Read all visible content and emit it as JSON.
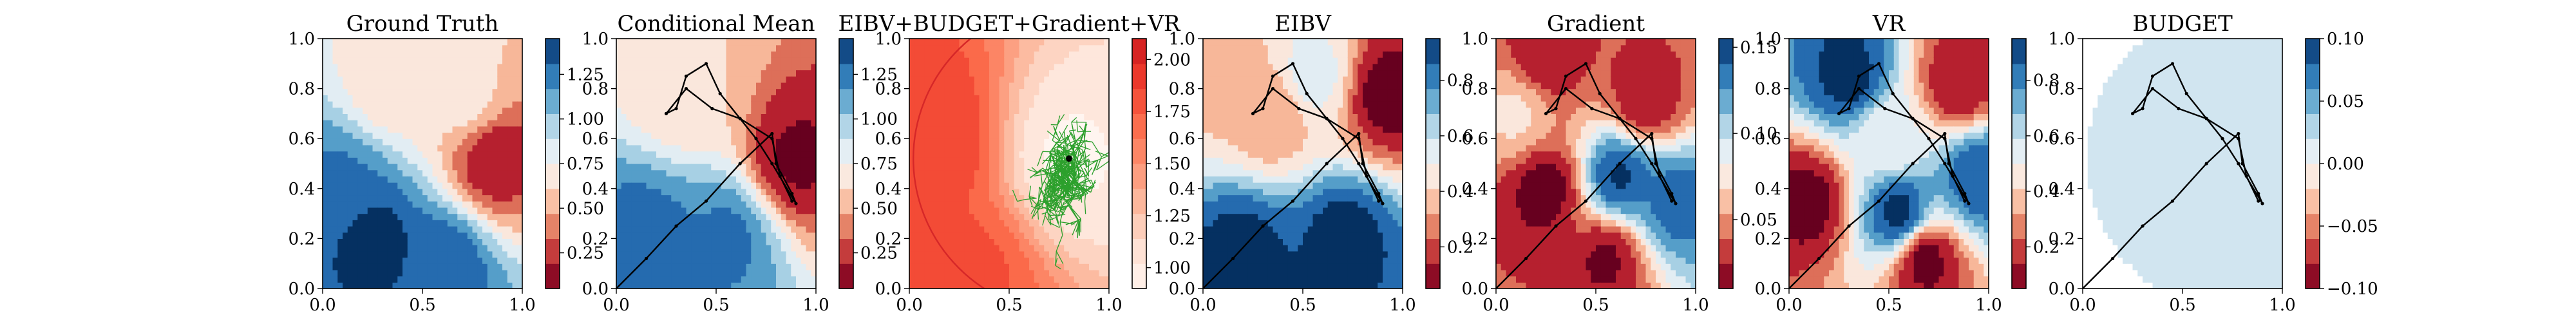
{
  "chart_data": [
    {
      "type": "heatmap",
      "title": "Ground Truth",
      "xlabel": "",
      "ylabel": "",
      "xlim": [
        0.0,
        1.0
      ],
      "ylim": [
        0.0,
        1.0
      ],
      "x_ticks": [
        "0.0",
        "0.5",
        "1.0"
      ],
      "y_ticks": [
        "0.0",
        "0.2",
        "0.4",
        "0.6",
        "0.8",
        "1.0"
      ],
      "colormap": "RdBu",
      "colorbar_range": [
        0.05,
        1.45
      ],
      "colorbar_ticks": [
        "0.25",
        "0.50",
        "0.75",
        "1.00",
        "1.25"
      ],
      "field_features": [
        {
          "x": 0.85,
          "y": 0.52,
          "value": 0.15
        },
        {
          "x": 0.35,
          "y": 0.82,
          "value": 0.62
        },
        {
          "x": 0.72,
          "y": 0.75,
          "value": 0.65
        },
        {
          "x": 0.25,
          "y": 0.2,
          "value": 1.45
        },
        {
          "x": 0.6,
          "y": 0.1,
          "value": 1.35
        },
        {
          "x": 0.1,
          "y": 0.4,
          "value": 1.25
        }
      ],
      "path": []
    },
    {
      "type": "heatmap",
      "title": "Conditional Mean",
      "xlabel": "",
      "ylabel": "",
      "xlim": [
        0.0,
        1.0
      ],
      "ylim": [
        0.0,
        1.0
      ],
      "x_ticks": [
        "0.0",
        "0.5",
        "1.0"
      ],
      "y_ticks": [
        "0.0",
        "0.2",
        "0.4",
        "0.6",
        "0.8",
        "1.0"
      ],
      "colormap": "RdBu",
      "colorbar_range": [
        0.05,
        1.45
      ],
      "colorbar_ticks": [
        "0.25",
        "0.50",
        "0.75",
        "1.00",
        "1.25"
      ],
      "field_features": [
        {
          "x": 0.9,
          "y": 0.52,
          "value": 0.1
        },
        {
          "x": 0.35,
          "y": 0.8,
          "value": 0.6
        },
        {
          "x": 0.15,
          "y": 0.2,
          "value": 1.3
        },
        {
          "x": 0.55,
          "y": 0.2,
          "value": 1.25
        }
      ],
      "path": [
        [
          0.0,
          0.0
        ],
        [
          0.15,
          0.12
        ],
        [
          0.3,
          0.25
        ],
        [
          0.45,
          0.35
        ],
        [
          0.62,
          0.5
        ],
        [
          0.78,
          0.62
        ],
        [
          0.8,
          0.5
        ],
        [
          0.88,
          0.38
        ],
        [
          0.9,
          0.34
        ],
        [
          0.78,
          0.5
        ],
        [
          0.7,
          0.6
        ],
        [
          0.52,
          0.78
        ],
        [
          0.45,
          0.9
        ],
        [
          0.35,
          0.85
        ],
        [
          0.3,
          0.72
        ],
        [
          0.25,
          0.7
        ],
        [
          0.35,
          0.8
        ],
        [
          0.48,
          0.72
        ],
        [
          0.62,
          0.68
        ],
        [
          0.78,
          0.6
        ],
        [
          0.82,
          0.45
        ],
        [
          0.88,
          0.35
        ]
      ]
    },
    {
      "type": "heatmap",
      "title": "EIBV+BUDGET+Gradient+VR",
      "xlabel": "",
      "ylabel": "",
      "xlim": [
        0.0,
        1.0
      ],
      "ylim": [
        0.0,
        1.0
      ],
      "x_ticks": [
        "0.0",
        "0.5",
        "1.0"
      ],
      "y_ticks": [
        "0.0",
        "0.2",
        "0.4",
        "0.6",
        "0.8",
        "1.0"
      ],
      "colormap": "Reds",
      "colorbar_range": [
        0.9,
        2.1
      ],
      "colorbar_ticks": [
        "1.00",
        "1.25",
        "1.50",
        "1.75",
        "2.00"
      ],
      "field_features": [
        {
          "x": 0.8,
          "y": 0.52,
          "value": 0.95
        },
        {
          "x": 0.1,
          "y": 0.6,
          "value": 1.9
        },
        {
          "x": 0.3,
          "y": 0.05,
          "value": 1.8
        }
      ],
      "tree_root": [
        0.8,
        0.52
      ],
      "budget_ellipse": {
        "cx": 0.8,
        "cy": 0.52,
        "rx": 0.78,
        "ry": 0.62
      },
      "path": []
    },
    {
      "type": "heatmap",
      "title": "EIBV",
      "xlabel": "",
      "ylabel": "",
      "xlim": [
        0.0,
        1.0
      ],
      "ylim": [
        0.0,
        1.0
      ],
      "x_ticks": [
        "0.0",
        "0.5",
        "1.0"
      ],
      "y_ticks": [
        "0.0",
        "0.2",
        "0.4",
        "0.6",
        "0.8",
        "1.0"
      ],
      "colormap": "RdBu",
      "colorbar_range": [
        0.05,
        0.95
      ],
      "colorbar_ticks": [
        "0.2",
        "0.4",
        "0.6",
        "0.8"
      ],
      "field_features": [
        {
          "x": 0.92,
          "y": 0.78,
          "value": 0.05
        },
        {
          "x": 0.35,
          "y": 0.7,
          "value": 0.3
        },
        {
          "x": 0.08,
          "y": 0.88,
          "value": 0.35
        },
        {
          "x": 0.55,
          "y": 0.85,
          "value": 0.55
        },
        {
          "x": 0.2,
          "y": 0.15,
          "value": 0.95
        },
        {
          "x": 0.7,
          "y": 0.2,
          "value": 0.95
        }
      ],
      "path": [
        [
          0.0,
          0.0
        ],
        [
          0.15,
          0.12
        ],
        [
          0.3,
          0.25
        ],
        [
          0.45,
          0.35
        ],
        [
          0.62,
          0.5
        ],
        [
          0.78,
          0.62
        ],
        [
          0.8,
          0.5
        ],
        [
          0.88,
          0.38
        ],
        [
          0.9,
          0.34
        ],
        [
          0.78,
          0.5
        ],
        [
          0.7,
          0.6
        ],
        [
          0.52,
          0.78
        ],
        [
          0.45,
          0.9
        ],
        [
          0.35,
          0.85
        ],
        [
          0.3,
          0.72
        ],
        [
          0.25,
          0.7
        ],
        [
          0.35,
          0.8
        ],
        [
          0.48,
          0.72
        ],
        [
          0.62,
          0.68
        ],
        [
          0.78,
          0.6
        ],
        [
          0.82,
          0.45
        ],
        [
          0.88,
          0.35
        ]
      ]
    },
    {
      "type": "heatmap",
      "title": "Gradient",
      "xlabel": "",
      "ylabel": "",
      "xlim": [
        0.0,
        1.0
      ],
      "ylim": [
        0.0,
        1.0
      ],
      "x_ticks": [
        "0.0",
        "0.5",
        "1.0"
      ],
      "y_ticks": [
        "0.0",
        "0.2",
        "0.4",
        "0.6",
        "0.8",
        "1.0"
      ],
      "colormap": "RdBu",
      "colorbar_range": [
        0.01,
        0.155
      ],
      "colorbar_ticks": [
        "0.05",
        "0.10",
        "0.15"
      ],
      "field_features": [
        {
          "x": 0.25,
          "y": 0.4,
          "value": 0.01
        },
        {
          "x": 0.55,
          "y": 0.12,
          "value": 0.015
        },
        {
          "x": 0.25,
          "y": 0.92,
          "value": 0.02
        },
        {
          "x": 0.75,
          "y": 0.75,
          "value": 0.02
        },
        {
          "x": 0.62,
          "y": 0.45,
          "value": 0.15
        },
        {
          "x": 0.9,
          "y": 0.35,
          "value": 0.14
        },
        {
          "x": 0.1,
          "y": 0.7,
          "value": 0.07
        }
      ],
      "path": [
        [
          0.0,
          0.0
        ],
        [
          0.15,
          0.12
        ],
        [
          0.3,
          0.25
        ],
        [
          0.45,
          0.35
        ],
        [
          0.62,
          0.5
        ],
        [
          0.78,
          0.62
        ],
        [
          0.8,
          0.5
        ],
        [
          0.88,
          0.38
        ],
        [
          0.9,
          0.34
        ],
        [
          0.78,
          0.5
        ],
        [
          0.7,
          0.6
        ],
        [
          0.52,
          0.78
        ],
        [
          0.45,
          0.9
        ],
        [
          0.35,
          0.85
        ],
        [
          0.3,
          0.72
        ],
        [
          0.25,
          0.7
        ],
        [
          0.35,
          0.8
        ],
        [
          0.48,
          0.72
        ],
        [
          0.62,
          0.68
        ],
        [
          0.78,
          0.6
        ],
        [
          0.82,
          0.45
        ],
        [
          0.88,
          0.35
        ]
      ]
    },
    {
      "type": "heatmap",
      "title": "VR",
      "xlabel": "",
      "ylabel": "",
      "xlim": [
        0.0,
        1.0
      ],
      "ylim": [
        0.0,
        1.0
      ],
      "x_ticks": [
        "0.0",
        "0.5",
        "1.0"
      ],
      "y_ticks": [
        "0.0",
        "0.2",
        "0.4",
        "0.6",
        "0.8",
        "1.0"
      ],
      "colormap": "RdBu",
      "colorbar_range": [
        0.05,
        0.95
      ],
      "colorbar_ticks": [
        "0.2",
        "0.4",
        "0.6",
        "0.8"
      ],
      "field_features": [
        {
          "x": 0.1,
          "y": 0.35,
          "value": 0.05
        },
        {
          "x": 0.68,
          "y": 0.12,
          "value": 0.05
        },
        {
          "x": 0.85,
          "y": 0.82,
          "value": 0.1
        },
        {
          "x": 0.5,
          "y": 0.6,
          "value": 0.5
        },
        {
          "x": 0.3,
          "y": 0.85,
          "value": 0.95
        },
        {
          "x": 0.55,
          "y": 0.3,
          "value": 0.95
        },
        {
          "x": 0.95,
          "y": 0.45,
          "value": 0.9
        }
      ],
      "path": [
        [
          0.0,
          0.0
        ],
        [
          0.15,
          0.12
        ],
        [
          0.3,
          0.25
        ],
        [
          0.45,
          0.35
        ],
        [
          0.62,
          0.5
        ],
        [
          0.78,
          0.62
        ],
        [
          0.8,
          0.5
        ],
        [
          0.88,
          0.38
        ],
        [
          0.9,
          0.34
        ],
        [
          0.78,
          0.5
        ],
        [
          0.7,
          0.6
        ],
        [
          0.52,
          0.78
        ],
        [
          0.45,
          0.9
        ],
        [
          0.35,
          0.85
        ],
        [
          0.3,
          0.72
        ],
        [
          0.25,
          0.7
        ],
        [
          0.35,
          0.8
        ],
        [
          0.48,
          0.72
        ],
        [
          0.62,
          0.68
        ],
        [
          0.78,
          0.6
        ],
        [
          0.82,
          0.45
        ],
        [
          0.88,
          0.35
        ]
      ]
    },
    {
      "type": "heatmap",
      "title": "BUDGET",
      "xlabel": "",
      "ylabel": "",
      "xlim": [
        0.0,
        1.0
      ],
      "ylim": [
        0.0,
        1.0
      ],
      "x_ticks": [
        "0.0",
        "0.5",
        "1.0"
      ],
      "y_ticks": [
        "0.0",
        "0.2",
        "0.4",
        "0.6",
        "0.8",
        "1.0"
      ],
      "colormap": "RdBu",
      "colorbar_range": [
        -0.1,
        0.1
      ],
      "colorbar_ticks": [
        "−0.10",
        "−0.05",
        "0.00",
        "0.05",
        "0.10"
      ],
      "field_features": [],
      "budget_ellipse": {
        "cx": 0.8,
        "cy": 0.52,
        "rx": 0.78,
        "ry": 0.62
      },
      "uniform_value": 0.0,
      "path": [
        [
          0.0,
          0.0
        ],
        [
          0.15,
          0.12
        ],
        [
          0.3,
          0.25
        ],
        [
          0.45,
          0.35
        ],
        [
          0.62,
          0.5
        ],
        [
          0.78,
          0.62
        ],
        [
          0.8,
          0.5
        ],
        [
          0.88,
          0.38
        ],
        [
          0.9,
          0.34
        ],
        [
          0.78,
          0.5
        ],
        [
          0.7,
          0.6
        ],
        [
          0.52,
          0.78
        ],
        [
          0.45,
          0.9
        ],
        [
          0.35,
          0.85
        ],
        [
          0.3,
          0.72
        ],
        [
          0.25,
          0.7
        ],
        [
          0.35,
          0.8
        ],
        [
          0.48,
          0.72
        ],
        [
          0.62,
          0.68
        ],
        [
          0.78,
          0.6
        ],
        [
          0.82,
          0.45
        ],
        [
          0.88,
          0.35
        ]
      ]
    }
  ],
  "colors": {
    "rdbu": [
      "#67001f",
      "#b2182b",
      "#d6604d",
      "#f4a582",
      "#fddbc7",
      "#f7f7f7",
      "#d1e5f0",
      "#92c5de",
      "#4393c3",
      "#2166ac",
      "#053061"
    ],
    "reds": [
      "#fff5f0",
      "#fee0d2",
      "#fcbba1",
      "#fc9272",
      "#fb6a4a",
      "#ef3b2c",
      "#cb181d"
    ],
    "tree": "#2ca02c",
    "budget_line": "#d62728",
    "path": "#000000"
  }
}
